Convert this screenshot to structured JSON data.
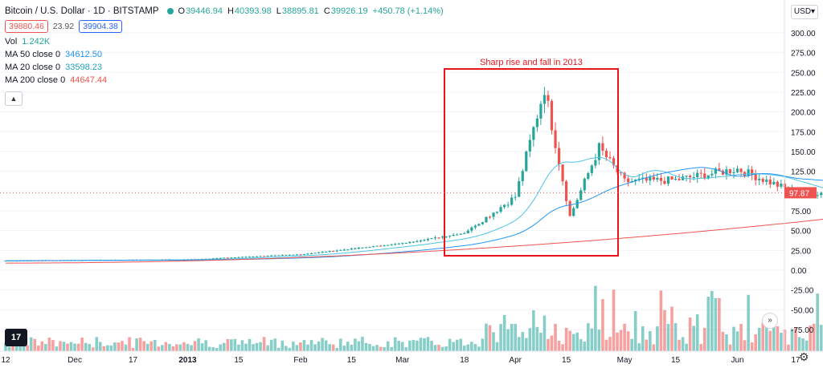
{
  "legend": {
    "title": "Bitcoin / U.S. Dollar · 1D · BITSTAMP",
    "open_k": "O",
    "open": "39446.94",
    "high_k": "H",
    "high": "40393.98",
    "low_k": "L",
    "low": "38895.81",
    "close_k": "C",
    "close": "39926.19",
    "change": "+450.78 (+1.14%)",
    "sell_price": "39880.46",
    "spread": "23.92",
    "buy_price": "39904.38",
    "vol_label": "Vol",
    "vol_value": "1.242K",
    "ma50_label": "MA 50 close 0",
    "ma50_value": "34612.50",
    "ma20_label": "MA 20 close 0",
    "ma20_value": "33598.23",
    "ma200_label": "MA 200 close 0",
    "ma200_value": "44647.44"
  },
  "currency": "USD",
  "tv_logo": "17",
  "scroll_icon": "»",
  "gear_icon": "⚙",
  "annotation": {
    "text": "Sharp rise and fall in 2013",
    "color": "#e8161c"
  },
  "colors": {
    "up": "#26a69a",
    "down": "#ef5350",
    "ma_short": "#4dc3e8",
    "ma_long": "#2196f3",
    "ma_slow": "#ef5350"
  },
  "last_price_label": "97.87",
  "chart_data": {
    "type": "candlestick",
    "title": "Bitcoin / U.S. Dollar · 1D · BITSTAMP",
    "xlabel": "",
    "ylabel": "",
    "ylim": [
      -100,
      340
    ],
    "y_ticks": [
      "300.00",
      "275.00",
      "250.00",
      "225.00",
      "200.00",
      "175.00",
      "150.00",
      "125.00",
      "100.00",
      "75.00",
      "50.00",
      "25.00",
      "0.00",
      "-25.00",
      "-50.00",
      "-75.00"
    ],
    "x_ticks": [
      "12",
      "Dec",
      "17",
      "2013",
      "15",
      "Feb",
      "15",
      "Mar",
      "18",
      "Apr",
      "15",
      "May",
      "15",
      "Jun",
      "17"
    ],
    "last_price": 97.87,
    "key_points": [
      {
        "date": "2012-11-12",
        "price": 12
      },
      {
        "date": "2013-01-01",
        "price": 13.5
      },
      {
        "date": "2013-02-01",
        "price": 20
      },
      {
        "date": "2013-03-01",
        "price": 34
      },
      {
        "date": "2013-03-18",
        "price": 47
      },
      {
        "date": "2013-04-01",
        "price": 93
      },
      {
        "date": "2013-04-09",
        "price": 230
      },
      {
        "date": "2013-04-16",
        "price": 68
      },
      {
        "date": "2013-04-24",
        "price": 155
      },
      {
        "date": "2013-05-01",
        "price": 112
      },
      {
        "date": "2013-05-15",
        "price": 114
      },
      {
        "date": "2013-06-01",
        "price": 128
      },
      {
        "date": "2013-06-17",
        "price": 98
      }
    ]
  }
}
